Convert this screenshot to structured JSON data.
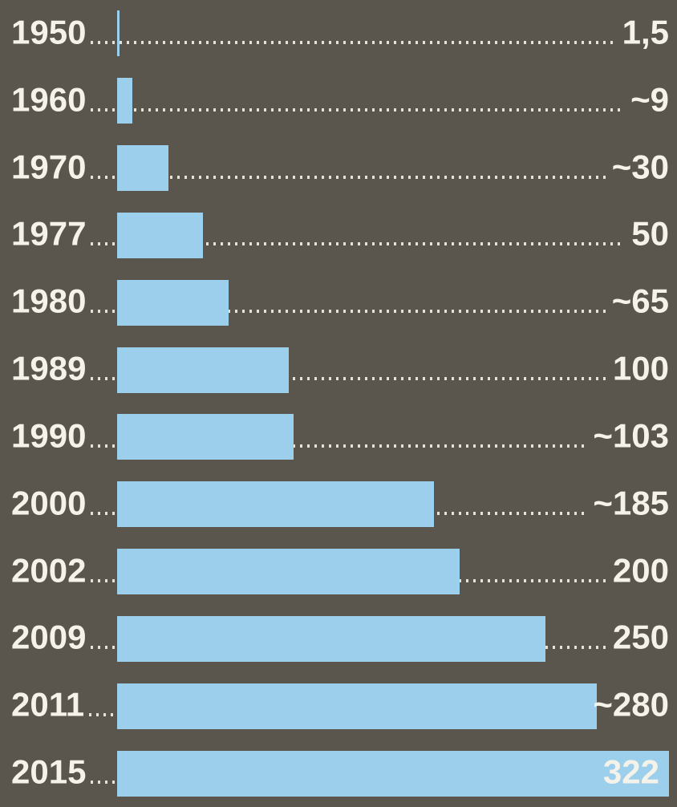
{
  "chart_data": {
    "type": "bar",
    "orientation": "horizontal",
    "categories": [
      "1950",
      "1960",
      "1970",
      "1977",
      "1980",
      "1989",
      "1990",
      "2000",
      "2002",
      "2009",
      "2011",
      "2015"
    ],
    "values": [
      1.5,
      9,
      30,
      50,
      65,
      100,
      103,
      185,
      200,
      250,
      280,
      322
    ],
    "value_labels": [
      "1,5",
      "~9",
      "~30",
      "50",
      "~65",
      "100",
      "~103",
      "~185",
      "200",
      "250",
      "~280",
      "322"
    ],
    "xlim": [
      0,
      322
    ],
    "grid": "dotted-leader-lines",
    "legend": "none",
    "colors": {
      "background": "#5a554d",
      "bar": "#9ccfec",
      "text": "#f5f2ea",
      "dots": "#e6e2d8"
    }
  }
}
